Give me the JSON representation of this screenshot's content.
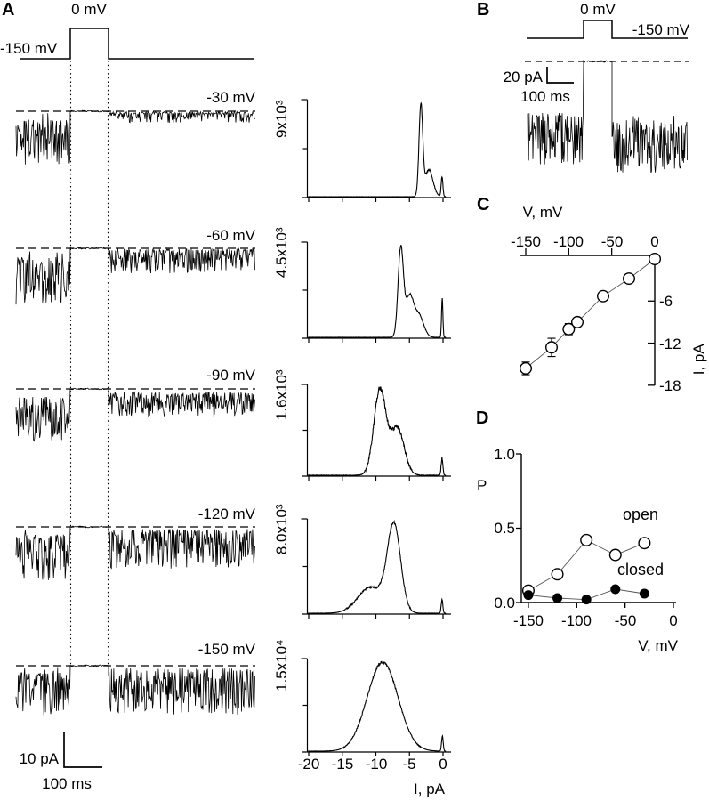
{
  "panelA": {
    "label": "A",
    "pulse_label": "0 mV",
    "holding_label": "-150 mV",
    "trace_labels": [
      "-30 mV",
      "-60 mV",
      "-90 mV",
      "-120 mV",
      "-150 mV"
    ],
    "scalebar_current": "10 pA",
    "scalebar_time": "100 ms"
  },
  "panelB": {
    "label": "B",
    "pulse_label": "0 mV",
    "holding_label": "-150 mV",
    "scalebar_current": "20 pA",
    "scalebar_time": "100 ms"
  },
  "panelC": {
    "label": "C",
    "xlabel": "V,  mV",
    "ylabel": "I,  pA",
    "xticks": [
      "-150",
      "-100",
      "-50",
      "0"
    ],
    "yticks": [
      "-6",
      "-12",
      "-18"
    ]
  },
  "panelD": {
    "label": "D",
    "ylabel": "P",
    "xlabel": "V,  mV",
    "yticks": [
      "1.0",
      "0.5",
      "0.0"
    ],
    "xticks": [
      "-150",
      "-100",
      "-50",
      "0"
    ],
    "open_label": "open",
    "closed_label": "closed"
  },
  "histograms": {
    "ylabels": [
      "9x10³",
      "4.5x10³",
      "1.6x10³",
      "8.0x10³",
      "1.5x10⁴"
    ],
    "xticks": [
      "-20",
      "-15",
      "-10",
      "-5",
      "0"
    ],
    "xlabel": "I,  pA"
  },
  "chart_data": [
    {
      "id": "panelA_traces",
      "type": "line",
      "title": "Single-channel current traces: holding -150 mV, pulse to 0 mV, then test potential",
      "protocol": {
        "holding_mV": -150,
        "pulse_mV": 0
      },
      "test_potentials_mV": [
        -30,
        -60,
        -90,
        -120,
        -150
      ],
      "open_level_pA": [
        -2.8,
        -5.3,
        -9.0,
        -12.6,
        -15.6
      ],
      "scalebar": {
        "current_pA": 10,
        "time_ms": 100
      }
    },
    {
      "id": "amplitude_histograms",
      "type": "area",
      "xlabel": "I, pA",
      "xlim": [
        -20,
        0
      ],
      "xticks": [
        -20,
        -15,
        -10,
        -5,
        0
      ],
      "items": [
        {
          "voltage": "-30 mV",
          "ymax_label": "9x10³",
          "peaks": [
            {
              "center_pA": -3.3,
              "sigma_pA": 0.28,
              "rel_amp": 1
            },
            {
              "center_pA": -2.1,
              "sigma_pA": 0.6,
              "rel_amp": 0.3
            },
            {
              "center_pA": -0.15,
              "sigma_pA": 0.13,
              "rel_amp": 0.22
            }
          ]
        },
        {
          "voltage": "-60 mV",
          "ymax_label": "4.5x10³",
          "peaks": [
            {
              "center_pA": -6.3,
              "sigma_pA": 0.4,
              "rel_amp": 1
            },
            {
              "center_pA": -5.0,
              "sigma_pA": 0.6,
              "rel_amp": 0.45
            },
            {
              "center_pA": -3.6,
              "sigma_pA": 0.7,
              "rel_amp": 0.25
            },
            {
              "center_pA": -0.12,
              "sigma_pA": 0.1,
              "rel_amp": 0.45
            }
          ]
        },
        {
          "voltage": "-90 mV",
          "ymax_label": "1.6x10³",
          "peaks": [
            {
              "center_pA": -9.4,
              "sigma_pA": 0.9,
              "rel_amp": 1
            },
            {
              "center_pA": -6.8,
              "sigma_pA": 1.0,
              "rel_amp": 0.55
            },
            {
              "center_pA": -0.15,
              "sigma_pA": 0.13,
              "rel_amp": 0.2
            }
          ]
        },
        {
          "voltage": "-120 mV",
          "ymax_label": "8.0x10³",
          "peaks": [
            {
              "center_pA": -7.3,
              "sigma_pA": 1.0,
              "rel_amp": 1
            },
            {
              "center_pA": -10.8,
              "sigma_pA": 1.9,
              "rel_amp": 0.3
            },
            {
              "center_pA": -0.15,
              "sigma_pA": 0.12,
              "rel_amp": 0.16
            }
          ]
        },
        {
          "voltage": "-150 mV",
          "ymax_label": "1.5x10⁴",
          "peaks": [
            {
              "center_pA": -9.0,
              "sigma_pA": 2.3,
              "rel_amp": 1
            },
            {
              "center_pA": -0.1,
              "sigma_pA": 0.12,
              "rel_amp": 0.17
            }
          ]
        }
      ]
    },
    {
      "id": "panelC_IV",
      "type": "scatter",
      "xlabel": "V, mV",
      "ylabel": "I, pA",
      "xticks": [
        -150,
        -100,
        -50,
        0
      ],
      "yticks": [
        -6,
        -12,
        -18
      ],
      "x": [
        -150,
        -120,
        -100,
        -90,
        -60,
        -30,
        0
      ],
      "y": [
        -15.6,
        -12.6,
        -10.0,
        -9.0,
        -5.3,
        -2.8,
        0
      ],
      "yerr": [
        0.9,
        1.3,
        0.8,
        0.6,
        0.6,
        0.5,
        0
      ],
      "marker": "open-circle",
      "line": true
    },
    {
      "id": "panelD_P",
      "type": "scatter",
      "xlabel": "V, mV",
      "ylabel": "P",
      "ylim": [
        0,
        1
      ],
      "xticks": [
        -150,
        -100,
        -50,
        0
      ],
      "yticks": [
        0.0,
        0.5,
        1.0
      ],
      "x": [
        -150,
        -120,
        -90,
        -60,
        -30
      ],
      "series": [
        {
          "name": "open",
          "marker": "open-circle",
          "values": [
            0.08,
            0.19,
            0.42,
            0.32,
            0.4
          ]
        },
        {
          "name": "closed",
          "marker": "filled-circle",
          "values": [
            0.05,
            0.03,
            0.02,
            0.09,
            0.06
          ]
        }
      ]
    }
  ]
}
